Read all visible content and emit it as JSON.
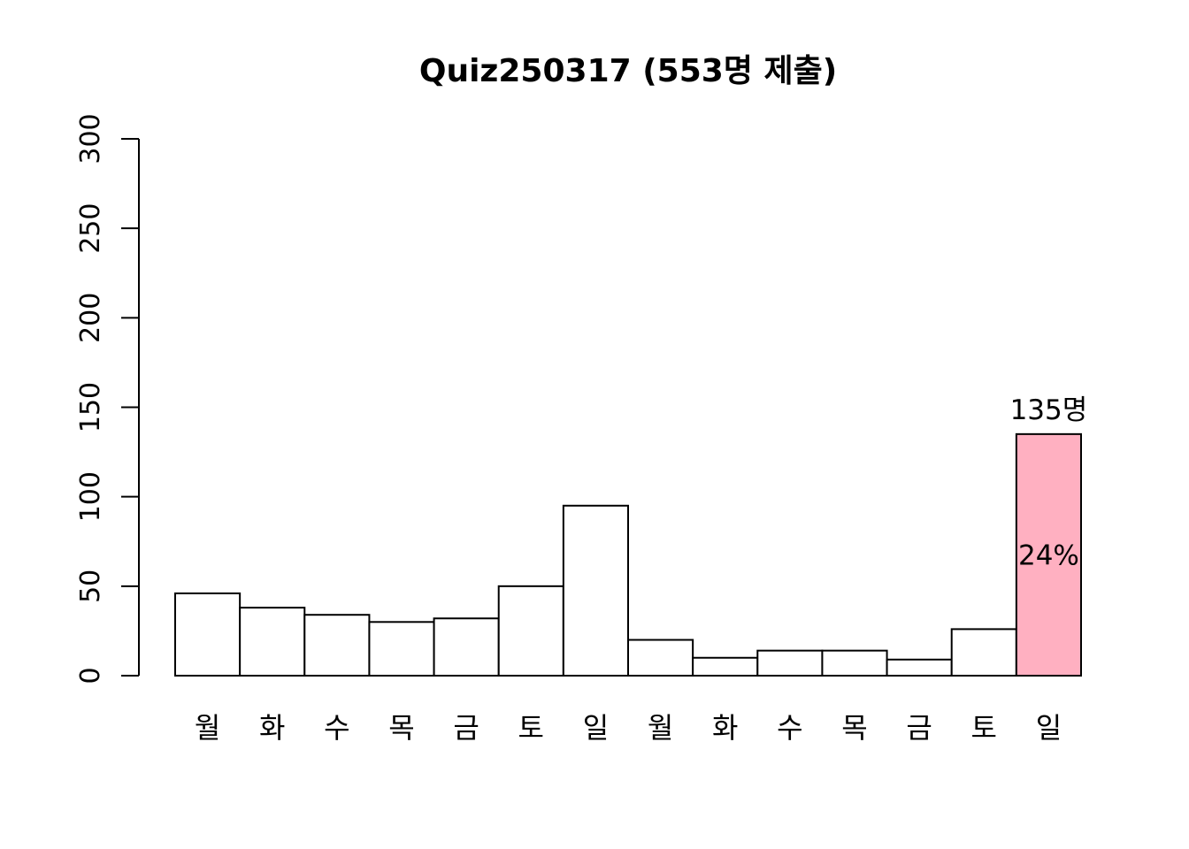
{
  "chart_data": {
    "type": "bar",
    "title": "Quiz250317 (553명 제출)",
    "xlabel": "",
    "ylabel": "",
    "ylim": [
      0,
      300
    ],
    "yticks": [
      0,
      50,
      100,
      150,
      200,
      250,
      300
    ],
    "categories": [
      "월",
      "화",
      "수",
      "목",
      "금",
      "토",
      "일",
      "월",
      "화",
      "수",
      "목",
      "금",
      "토",
      "일"
    ],
    "values": [
      46,
      38,
      34,
      30,
      32,
      50,
      95,
      20,
      10,
      14,
      14,
      9,
      26,
      135
    ],
    "bar_fill": "#ffffff",
    "highlight": {
      "index": 13,
      "color": "#ffb0c1",
      "count_label": "135명",
      "percent_label": "24%"
    },
    "grid": false,
    "legend": "none"
  }
}
